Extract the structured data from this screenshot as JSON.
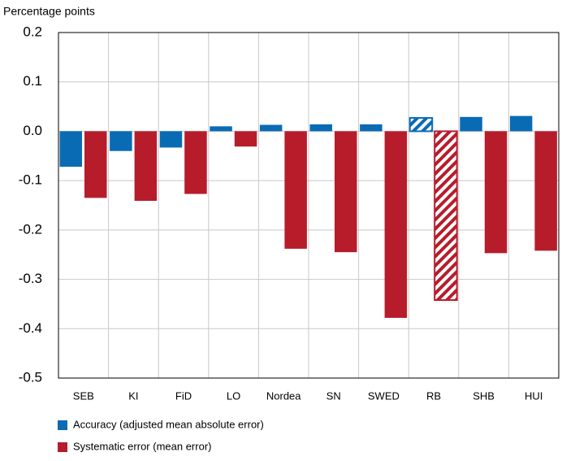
{
  "chart_data": {
    "type": "bar",
    "y_axis_label": "Percentage points",
    "categories": [
      "SEB",
      "KI",
      "FiD",
      "LO",
      "Nordea",
      "SN",
      "SWED",
      "RB",
      "SHB",
      "HUI"
    ],
    "series": [
      {
        "name": "Accuracy (adjusted mean absolute error)",
        "color": "#0a6bb5",
        "values": [
          -0.072,
          -0.04,
          -0.033,
          0.01,
          0.013,
          0.014,
          0.014,
          0.027,
          0.029,
          0.031
        ]
      },
      {
        "name": "Systematic error (mean error)",
        "color": "#b71c2b",
        "values": [
          -0.135,
          -0.141,
          -0.127,
          -0.031,
          -0.238,
          -0.245,
          -0.378,
          -0.342,
          -0.247,
          -0.242
        ]
      }
    ],
    "hatched_category": "RB",
    "ylim": [
      -0.5,
      0.2
    ],
    "yticks": [
      0.2,
      0.1,
      {
        "value": 0,
        "label": "0.0"
      },
      -0.1,
      -0.2,
      -0.3,
      -0.4,
      -0.5
    ],
    "grid": true
  }
}
